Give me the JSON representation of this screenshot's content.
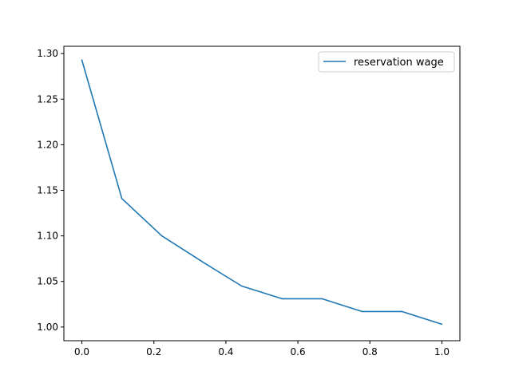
{
  "chart_data": {
    "type": "line",
    "title": "",
    "xlabel": "",
    "ylabel": "",
    "xlim": [
      -0.05,
      1.05
    ],
    "ylim": [
      0.985,
      1.308
    ],
    "grid": false,
    "legend_position": "top-right",
    "xticks": [
      0.0,
      0.2,
      0.4,
      0.6,
      0.8,
      1.0
    ],
    "yticks": [
      1.0,
      1.05,
      1.1,
      1.15,
      1.2,
      1.25,
      1.3
    ],
    "xtick_labels": [
      "0.0",
      "0.2",
      "0.4",
      "0.6",
      "0.8",
      "1.0"
    ],
    "ytick_labels": [
      "1.00",
      "1.05",
      "1.10",
      "1.15",
      "1.20",
      "1.25",
      "1.30"
    ],
    "series": [
      {
        "name": "reservation wage",
        "color": "#1f77b4",
        "x": [
          0.0,
          0.111,
          0.222,
          0.333,
          0.444,
          0.556,
          0.667,
          0.778,
          0.889,
          1.0
        ],
        "y": [
          1.293,
          1.141,
          1.1,
          1.072,
          1.045,
          1.031,
          1.031,
          1.017,
          1.017,
          1.003
        ]
      }
    ]
  }
}
